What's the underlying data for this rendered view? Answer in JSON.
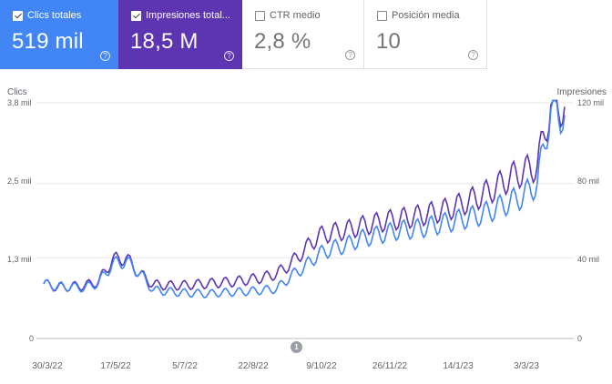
{
  "cards": [
    {
      "label": "Clics totales",
      "value": "519 mil",
      "active": true,
      "color": "#4285f4"
    },
    {
      "label": "Impresiones total...",
      "value": "18,5 M",
      "active": true,
      "color": "#5e35b1"
    },
    {
      "label": "CTR medio",
      "value": "2,8 %",
      "active": false
    },
    {
      "label": "Posición media",
      "value": "10",
      "active": false
    }
  ],
  "help_glyph": "?",
  "annotation": "1",
  "chart_data": {
    "type": "line",
    "left_axis_title": "Clics",
    "right_axis_title": "Impresiones",
    "left_ticks": [
      "0",
      "1,3 mil",
      "2,5 mil",
      "3,8 mil"
    ],
    "left_tick_values": [
      0,
      1300,
      2500,
      3800
    ],
    "right_ticks": [
      "0",
      "40 mil",
      "80 mil",
      "120 mil"
    ],
    "right_tick_values": [
      0,
      40000,
      80000,
      120000
    ],
    "x_ticks": [
      "30/3/22",
      "17/5/22",
      "5/7/22",
      "22/8/22",
      "9/10/22",
      "26/11/22",
      "14/1/23",
      "3/3/23"
    ],
    "x_range_days": 360,
    "grid": true,
    "series": [
      {
        "name": "Clics totales",
        "axis": "left",
        "color": "#4285f4",
        "sampling": "weekly",
        "values": [
          880,
          840,
          830,
          820,
          900,
          1200,
          1250,
          1050,
          780,
          760,
          740,
          730,
          720,
          740,
          750,
          760,
          780,
          800,
          1000,
          1150,
          1350,
          1450,
          1500,
          1600,
          1650,
          1700,
          1750,
          1760,
          1800,
          1850,
          1900,
          1950,
          2000,
          2100,
          2200,
          2300,
          2500,
          3700,
          3600
        ]
      },
      {
        "name": "Impresiones totales",
        "axis": "right",
        "color": "#5e35b1",
        "sampling": "weekly",
        "values": [
          28000,
          26000,
          26500,
          27000,
          29000,
          40000,
          41000,
          33000,
          27500,
          27000,
          27000,
          27500,
          28000,
          28500,
          29000,
          30000,
          31000,
          33000,
          38000,
          45000,
          52000,
          54000,
          55000,
          57000,
          58500,
          60000,
          61000,
          62000,
          63500,
          65000,
          67000,
          70000,
          73000,
          77000,
          82000,
          85000,
          88000,
          119000,
          118000
        ]
      }
    ]
  }
}
